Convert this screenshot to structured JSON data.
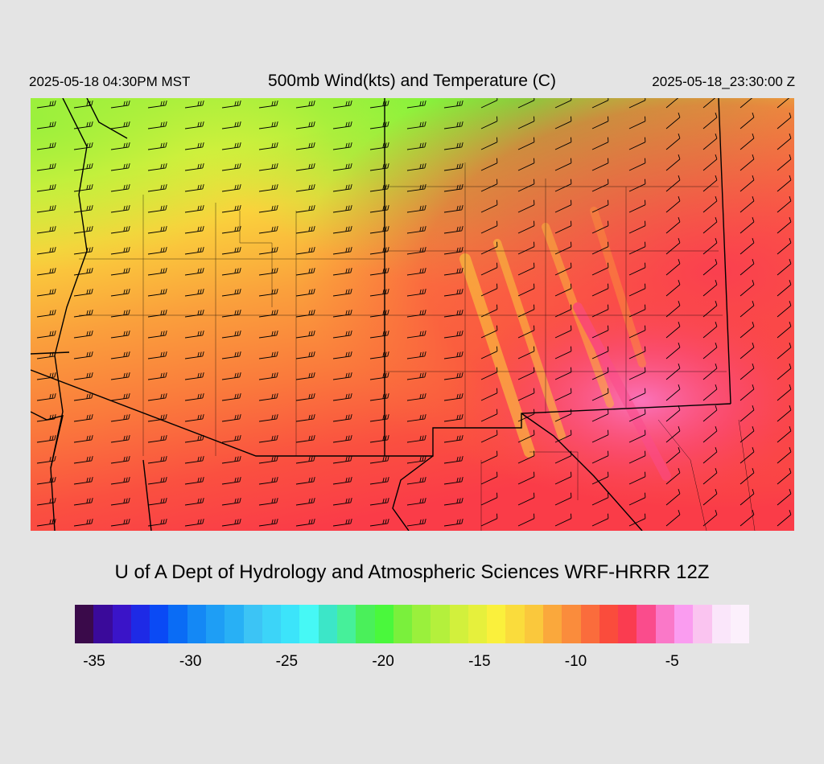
{
  "header": {
    "local_time": "2025-05-18 04:30PM MST",
    "title": "500mb Wind(kts) and Temperature (C)",
    "valid_time": "2025-05-18_23:30:00 Z"
  },
  "footer": {
    "credit": "U of A Dept of Hydrology and Atmospheric Sciences WRF-HRRR 12Z"
  },
  "colorbar": {
    "colors": [
      "#3a0a4a",
      "#3a0a9a",
      "#3a14c8",
      "#1e2ae6",
      "#0a4af5",
      "#0a6cf5",
      "#1488f5",
      "#1e9ef5",
      "#28b0f5",
      "#3cc4f5",
      "#3cd4f8",
      "#3ce4fa",
      "#46f8f5",
      "#3ce6c8",
      "#46f09a",
      "#4af05a",
      "#4af83c",
      "#7af03c",
      "#9af03c",
      "#b4f03c",
      "#d2f03c",
      "#e6f03c",
      "#faf03c",
      "#fadc3c",
      "#fac83c",
      "#faa83c",
      "#fa8c3c",
      "#fa6c3c",
      "#fa4c3c",
      "#fa3c50",
      "#fa4c8c",
      "#fa78c8",
      "#fa9cf0",
      "#fac4f0",
      "#fae6fa",
      "#fcf0fc"
    ],
    "labels": [
      "-35",
      "-30",
      "-25",
      "-20",
      "-15",
      "-10",
      "-5"
    ],
    "label_values": [
      -35,
      -30,
      -25,
      -20,
      -15,
      -10,
      -5
    ],
    "min": -36,
    "max": -1
  },
  "map_layers": {
    "temperature_fill": "500mb temperature (C)",
    "wind_barbs": "500mb wind (kts)",
    "boundaries": "state and county lines"
  }
}
